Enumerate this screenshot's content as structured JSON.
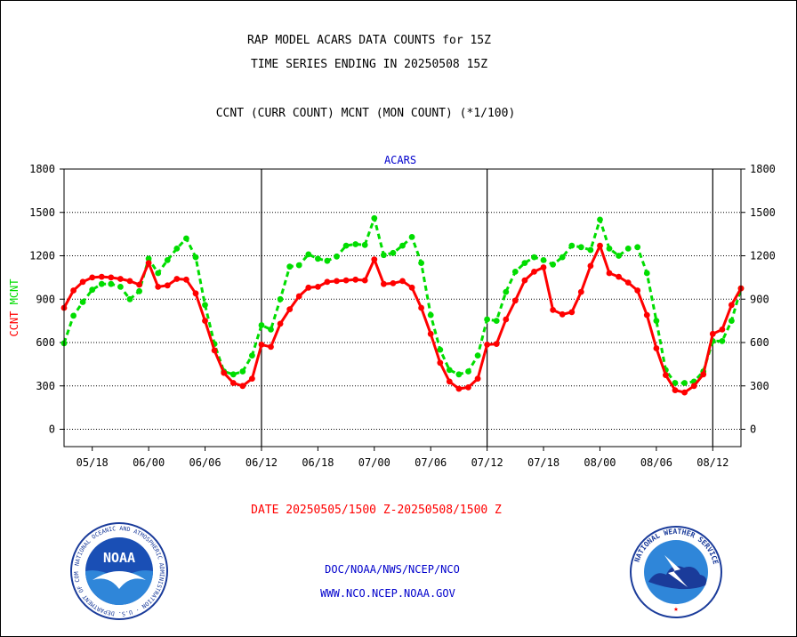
{
  "header": {
    "title_line1": "RAP MODEL ACARS DATA COUNTS for 15Z",
    "title_line2": "TIME SERIES ENDING IN 20250508 15Z",
    "subtitle": "CCNT (CURR COUNT) MCNT (MON COUNT) (*1/100)"
  },
  "footer": {
    "date_range": "DATE 20250505/1500 Z-20250508/1500 Z",
    "link1": "DOC/NOAA/NWS/NCEP/NCO",
    "link2": "WWW.NCO.NCEP.NOAA.GOV"
  },
  "logos": {
    "noaa": {
      "label": "NOAA",
      "ring_text": "NATIONAL OCEANIC AND ATMOSPHERIC ADMINISTRATION · U.S. DEPARTMENT OF COMMERCE"
    },
    "nws": {
      "ring_text": "NATIONAL WEATHER SERVICE"
    }
  },
  "colors": {
    "ccnt": "#ff0000",
    "mcnt": "#00dd00",
    "panel_label": "#0000cc",
    "link": "#0000cc",
    "date": "#ff0000"
  },
  "chart_data": {
    "type": "line",
    "panel_label": "ACARS",
    "ylabel_left": [
      "CCNT",
      "MCNT"
    ],
    "ylim": [
      -120,
      1800
    ],
    "yticks": [
      0,
      300,
      600,
      900,
      1200,
      1500,
      1800
    ],
    "xlim": [
      0,
      72
    ],
    "xticks": [
      {
        "x": 3,
        "label": "05/18"
      },
      {
        "x": 9,
        "label": "06/00"
      },
      {
        "x": 15,
        "label": "06/06"
      },
      {
        "x": 21,
        "label": "06/12"
      },
      {
        "x": 27,
        "label": "06/18"
      },
      {
        "x": 33,
        "label": "07/00"
      },
      {
        "x": 39,
        "label": "07/06"
      },
      {
        "x": 45,
        "label": "07/12"
      },
      {
        "x": 51,
        "label": "07/18"
      },
      {
        "x": 57,
        "label": "08/00"
      },
      {
        "x": 63,
        "label": "08/06"
      },
      {
        "x": 69,
        "label": "08/12"
      }
    ],
    "day_boundaries": [
      21,
      45,
      69
    ],
    "grid": true,
    "series": [
      {
        "name": "CCNT",
        "x": [
          0,
          1,
          2,
          3,
          4,
          5,
          6,
          7,
          8,
          9,
          10,
          11,
          12,
          13,
          14,
          15,
          16,
          17,
          18,
          19,
          20,
          21,
          22,
          23,
          24,
          25,
          26,
          27,
          28,
          29,
          30,
          31,
          32,
          33,
          34,
          35,
          36,
          37,
          38,
          39,
          40,
          41,
          42,
          43,
          44,
          45,
          46,
          47,
          48,
          49,
          50,
          51,
          52,
          53,
          54,
          55,
          56,
          57,
          58,
          59,
          60,
          61,
          62,
          63,
          64,
          65,
          66,
          67,
          68,
          69,
          70,
          71,
          72
        ],
        "y": [
          840,
          960,
          1020,
          1050,
          1055,
          1050,
          1040,
          1025,
          1000,
          1150,
          985,
          995,
          1040,
          1035,
          940,
          750,
          545,
          390,
          320,
          300,
          350,
          585,
          570,
          730,
          830,
          920,
          980,
          985,
          1020,
          1025,
          1030,
          1035,
          1030,
          1175,
          1005,
          1010,
          1025,
          980,
          840,
          660,
          460,
          330,
          280,
          290,
          350,
          585,
          590,
          760,
          890,
          1030,
          1090,
          1120,
          825,
          795,
          810,
          950,
          1130,
          1270,
          1080,
          1055,
          1015,
          960,
          790,
          560,
          375,
          270,
          255,
          300,
          380,
          660,
          690,
          860,
          975
        ]
      },
      {
        "name": "MCNT",
        "x": [
          0,
          1,
          2,
          3,
          4,
          5,
          6,
          7,
          8,
          9,
          10,
          11,
          12,
          13,
          14,
          15,
          16,
          17,
          18,
          19,
          20,
          21,
          22,
          23,
          24,
          25,
          26,
          27,
          28,
          29,
          30,
          31,
          32,
          33,
          34,
          35,
          36,
          37,
          38,
          39,
          40,
          41,
          42,
          43,
          44,
          45,
          46,
          47,
          48,
          49,
          50,
          51,
          52,
          53,
          54,
          55,
          56,
          57,
          58,
          59,
          60,
          61,
          62,
          63,
          64,
          65,
          66,
          67,
          68,
          69,
          70,
          71,
          72
        ],
        "y": [
          595,
          785,
          880,
          965,
          1005,
          1005,
          985,
          900,
          955,
          1180,
          1080,
          1170,
          1250,
          1320,
          1190,
          860,
          590,
          400,
          380,
          400,
          510,
          720,
          690,
          900,
          1125,
          1135,
          1210,
          1180,
          1165,
          1195,
          1270,
          1280,
          1275,
          1460,
          1205,
          1220,
          1270,
          1330,
          1150,
          790,
          550,
          410,
          380,
          400,
          510,
          760,
          750,
          950,
          1090,
          1150,
          1190,
          1170,
          1140,
          1190,
          1270,
          1260,
          1240,
          1450,
          1250,
          1200,
          1250,
          1260,
          1080,
          750,
          410,
          320,
          320,
          330,
          400,
          610,
          610,
          750,
          975
        ]
      }
    ]
  }
}
